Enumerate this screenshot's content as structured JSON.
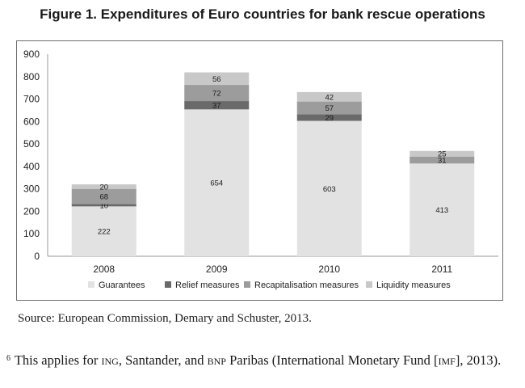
{
  "figure": {
    "title": "Figure 1. Expenditures of Euro countries for bank rescue operations"
  },
  "chart_data": {
    "type": "bar",
    "stacked": true,
    "categories": [
      "2008",
      "2009",
      "2010",
      "2011"
    ],
    "series": [
      {
        "name": "Guarantees",
        "values": [
          222,
          654,
          603,
          413
        ],
        "color": "#e2e2e2"
      },
      {
        "name": "Relief measures",
        "values": [
          10,
          37,
          29,
          0
        ],
        "color": "#6a6a6a"
      },
      {
        "name": "Recapitalisation measures",
        "values": [
          68,
          72,
          57,
          31
        ],
        "color": "#9c9c9c"
      },
      {
        "name": "Liquidity measures",
        "values": [
          20,
          56,
          42,
          25
        ],
        "color": "#c8c8c8"
      }
    ],
    "data_labels": [
      [
        "222",
        "654",
        "603",
        "413"
      ],
      [
        "10",
        "37",
        "29",
        ""
      ],
      [
        "68",
        "72",
        "57",
        "31"
      ],
      [
        "20",
        "56",
        "42",
        "25"
      ]
    ],
    "ylim": [
      0,
      900
    ],
    "yticks": [
      "0",
      "100",
      "200",
      "300",
      "400",
      "500",
      "600",
      "700",
      "800",
      "900"
    ],
    "xlabel": "",
    "ylabel": "",
    "grid": false,
    "legend": "bottom"
  },
  "source": "Source: European Commission, Demary and Schuster, 2013.",
  "footnote": {
    "marker": "6",
    "text_1": "This applies for ",
    "sc_1": "ing",
    "text_2": ", Santander, and ",
    "sc_2": "bnp",
    "text_3": " Paribas (International Monetary Fund [",
    "sc_3": "imf",
    "text_4": "], 2013)."
  }
}
